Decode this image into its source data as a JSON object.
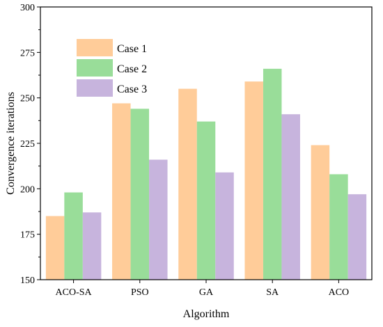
{
  "chart_data": {
    "type": "bar",
    "xlabel": "Algorithm",
    "ylabel": "Convergence iterations",
    "categories": [
      "ACO-SA",
      "PSO",
      "GA",
      "SA",
      "ACO"
    ],
    "series": [
      {
        "name": "Case 1",
        "values": [
          185,
          247,
          255,
          259,
          224
        ],
        "color": "#FFCC99"
      },
      {
        "name": "Case 2",
        "values": [
          198,
          244,
          237,
          266,
          208
        ],
        "color": "#99DD99"
      },
      {
        "name": "Case 3",
        "values": [
          187,
          216,
          209,
          241,
          197
        ],
        "color": "#C7B4DD"
      }
    ],
    "ylim": [
      150,
      300
    ],
    "yticks": [
      150,
      175,
      200,
      225,
      250,
      275,
      300
    ],
    "legend_position": "top-left",
    "grid": false
  }
}
